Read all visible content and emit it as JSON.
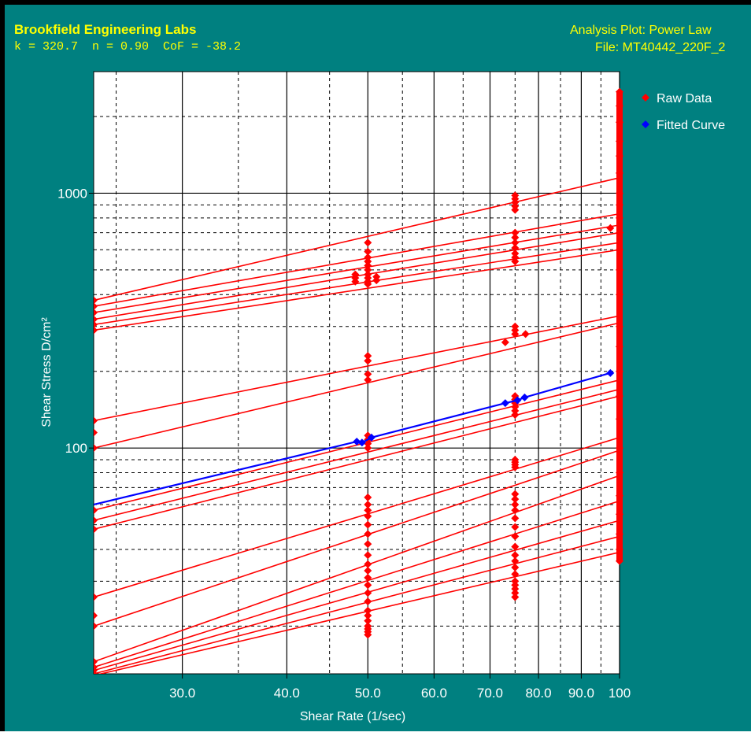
{
  "header": {
    "company": "Brookfield Engineering Labs",
    "params": "k = 320.7  n = 0.90  CoF = -38.2",
    "analysis": "Analysis Plot: Power Law",
    "file": "File: MT40442_220F_2"
  },
  "colors": {
    "background": "#008080",
    "plot_area": "#ffffff",
    "raw": "#ff0000",
    "fitted": "#0000ff",
    "header_text": "#ffff00",
    "axis_text": "#ffffff"
  },
  "chart_data": {
    "type": "line",
    "title": "Analysis Plot: Power Law",
    "xlabel": "Shear Rate (1/sec)",
    "ylabel": "Shear Stress D/cm²",
    "x_scale": "log",
    "y_scale": "log",
    "xlim": [
      23.5,
      100
    ],
    "ylim": [
      13,
      3000
    ],
    "grid": true,
    "legend_position": "top-right",
    "x_ticks": [
      {
        "value": 30,
        "label": "30.0"
      },
      {
        "value": 40,
        "label": "40.0"
      },
      {
        "value": 50,
        "label": "50.0"
      },
      {
        "value": 60,
        "label": "60.0"
      },
      {
        "value": 70,
        "label": "70.0"
      },
      {
        "value": 80,
        "label": "80.0"
      },
      {
        "value": 90,
        "label": "90.0"
      },
      {
        "value": 100,
        "label": "100"
      }
    ],
    "y_ticks": [
      {
        "value": 100,
        "label": "100"
      },
      {
        "value": 1000,
        "label": "1000"
      }
    ],
    "series": [
      {
        "name": "Fitted Curve",
        "color": "#0000ff",
        "x": [
          23.5,
          48.5,
          49.2,
          50.5,
          73,
          75.5,
          77,
          97.5
        ],
        "y": [
          60,
          106,
          105,
          110,
          150,
          154,
          158,
          197
        ]
      },
      {
        "name": "Raw Data",
        "color": "#ff0000",
        "lines": [
          {
            "x": [
              23.5,
              100
            ],
            "y": [
              380,
              1150
            ]
          },
          {
            "x": [
              23.5,
              100
            ],
            "y": [
              360,
              830
            ]
          },
          {
            "x": [
              23.5,
              100
            ],
            "y": [
              340,
              750
            ]
          },
          {
            "x": [
              23.5,
              100
            ],
            "y": [
              320,
              700
            ]
          },
          {
            "x": [
              23.5,
              100
            ],
            "y": [
              305,
              640
            ]
          },
          {
            "x": [
              23.5,
              100
            ],
            "y": [
              290,
              600
            ]
          },
          {
            "x": [
              23.5,
              100
            ],
            "y": [
              128,
              330
            ]
          },
          {
            "x": [
              23.5,
              100
            ],
            "y": [
              100,
              310
            ]
          },
          {
            "x": [
              23.5,
              100
            ],
            "y": [
              57,
              185
            ]
          },
          {
            "x": [
              23.5,
              100
            ],
            "y": [
              52,
              170
            ]
          },
          {
            "x": [
              23.5,
              100
            ],
            "y": [
              48,
              160
            ]
          },
          {
            "x": [
              23.5,
              100
            ],
            "y": [
              26,
              110
            ]
          },
          {
            "x": [
              23.5,
              100
            ],
            "y": [
              20,
              98
            ]
          },
          {
            "x": [
              23.5,
              100
            ],
            "y": [
              14.5,
              78
            ]
          },
          {
            "x": [
              23.5,
              100
            ],
            "y": [
              13.8,
              62
            ]
          },
          {
            "x": [
              23.5,
              100
            ],
            "y": [
              13.4,
              52
            ]
          },
          {
            "x": [
              23.5,
              100
            ],
            "y": [
              13.0,
              45
            ]
          },
          {
            "x": [
              23.5,
              100
            ],
            "y": [
              12.8,
              39
            ]
          }
        ],
        "points": [
          {
            "x": 23.5,
            "y": [
              380,
              360,
              340,
              320,
              305,
              290,
              128,
              115,
              100,
              57,
              52,
              48,
              26,
              22,
              20,
              14.5,
              13.8,
              13.4,
              13
            ]
          },
          {
            "x": 50,
            "y": [
              640,
              590,
              560,
              540,
              520,
              500,
              480,
              465,
              450,
              440,
              230,
              220,
              195,
              185,
              112,
              108,
              104,
              100,
              64,
              60,
              57,
              54,
              50,
              46,
              42,
              38,
              35,
              33,
              31,
              29,
              27,
              25,
              23,
              22,
              21,
              20,
              19.5,
              19,
              18.5
            ]
          },
          {
            "x": 48.3,
            "y": [
              480,
              465,
              450
            ]
          },
          {
            "x": 51.2,
            "y": [
              470,
              455
            ]
          },
          {
            "x": 75,
            "y": [
              980,
              950,
              920,
              890,
              860,
              700,
              670,
              640,
              610,
              580,
              560,
              540,
              300,
              290,
              280,
              160,
              155,
              150,
              145,
              140,
              135,
              90,
              88,
              86,
              84,
              66,
              63,
              60,
              57,
              53,
              49,
              45,
              41,
              38,
              36,
              34,
              32,
              30,
              29,
              28,
              27,
              26
            ]
          },
          {
            "x": 73,
            "y": [
              260
            ]
          },
          {
            "x": 77.2,
            "y": [
              280
            ]
          },
          {
            "x": 100,
            "y": [
              2500,
              2200,
              1900,
              1600,
              1400,
              1200,
              1000,
              900,
              800,
              700,
              600,
              500,
              400,
              300,
              250,
              200,
              160,
              130,
              100,
              80,
              65,
              55,
              46,
              40,
              36
            ]
          },
          {
            "x": 97.5,
            "y": [
              730
            ]
          }
        ]
      }
    ]
  }
}
